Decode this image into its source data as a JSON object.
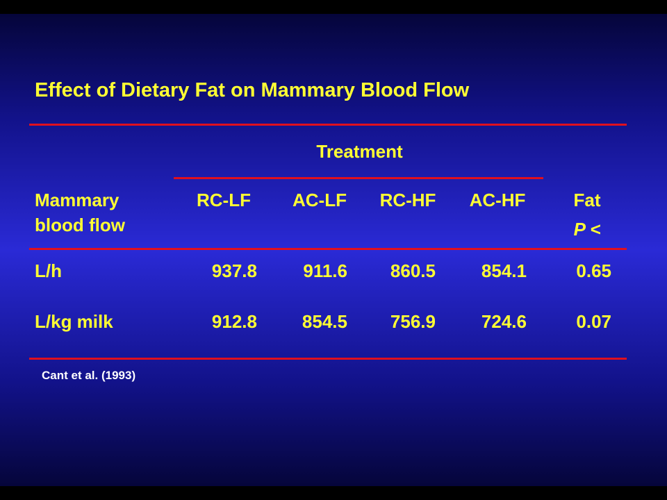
{
  "title": "Effect of Dietary Fat on Mammary Blood Flow",
  "table": {
    "group_header": "Treatment",
    "row_header_line1": "Mammary",
    "row_header_line2": "blood flow",
    "columns": [
      "RC-LF",
      "AC-LF",
      "RC-HF",
      "AC-HF"
    ],
    "fat_header_line1": "Fat",
    "fat_header_line2": "P <",
    "rows": [
      {
        "label": "L/h",
        "values": [
          "937.8",
          "911.6",
          "860.5",
          "854.1"
        ],
        "p": "0.65"
      },
      {
        "label": "L/kg milk",
        "values": [
          "912.8",
          "854.5",
          "756.9",
          "724.6"
        ],
        "p": "0.07"
      }
    ]
  },
  "citation": "Cant et al. (1993)",
  "colors": {
    "text": "#ffff33",
    "rule": "#e0101e",
    "citation": "#ffffff"
  }
}
